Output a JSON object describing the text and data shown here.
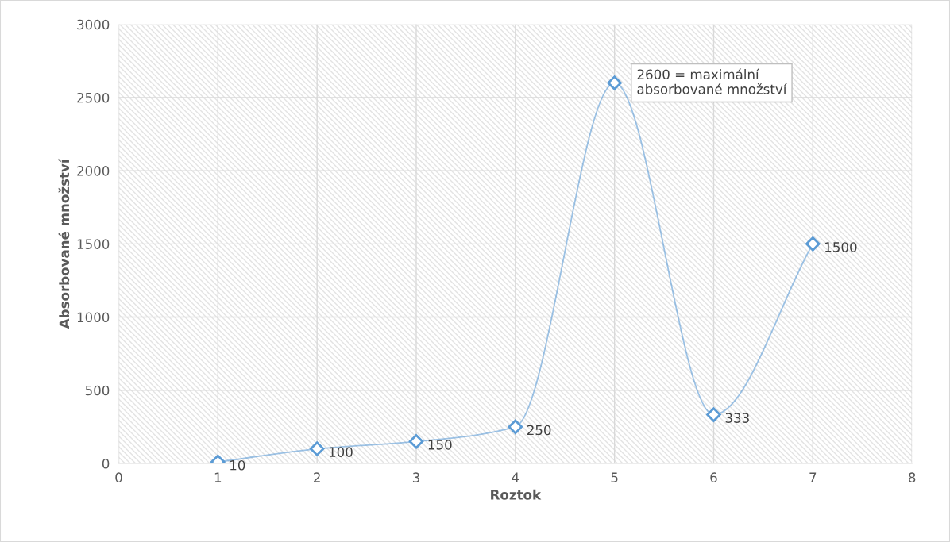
{
  "chart_data": {
    "type": "line",
    "xlabel": "Roztok",
    "ylabel": "Absorbované množství",
    "x": [
      1,
      2,
      3,
      4,
      5,
      6,
      7
    ],
    "series": [
      {
        "color": "#5b9bd5",
        "values": [
          10,
          100,
          150,
          250,
          2600,
          333,
          1500
        ],
        "value_labels": [
          "10",
          "100",
          "150",
          "250",
          null,
          "333",
          "1500"
        ]
      }
    ],
    "annotations": [
      {
        "text": "2600 = maximální\nabsorbované množství",
        "x": 5,
        "y": 2600
      }
    ],
    "xlim": [
      0,
      8
    ],
    "xticks": [
      0,
      1,
      2,
      3,
      4,
      5,
      6,
      7,
      8
    ],
    "ylim": [
      0,
      3000
    ],
    "yticks": [
      0,
      500,
      1000,
      1500,
      2000,
      2500,
      3000
    ],
    "grid": true,
    "marker": "diamond",
    "line_style": "solid",
    "legend": false
  }
}
